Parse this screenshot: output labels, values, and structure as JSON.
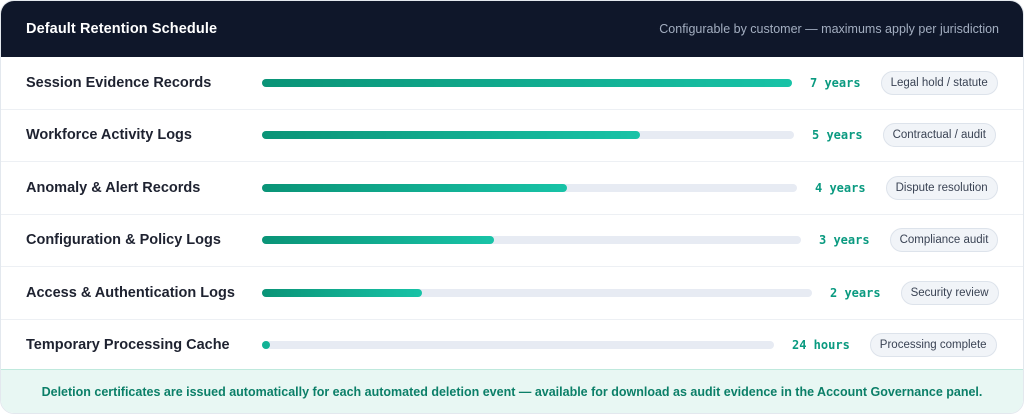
{
  "header": {
    "title": "Default Retention Schedule",
    "note": "Configurable by customer — maximums apply per jurisdiction"
  },
  "rows": [
    {
      "label": "Session Evidence Records",
      "fill_fraction": 1.0,
      "duration": "7 years",
      "reason": "Legal hold / statute"
    },
    {
      "label": "Workforce Activity Logs",
      "fill_fraction": 0.71,
      "duration": "5 years",
      "reason": "Contractual / audit"
    },
    {
      "label": "Anomaly & Alert Records",
      "fill_fraction": 0.57,
      "duration": "4 years",
      "reason": "Dispute resolution"
    },
    {
      "label": "Configuration & Policy Logs",
      "fill_fraction": 0.43,
      "duration": "3 years",
      "reason": "Compliance audit"
    },
    {
      "label": "Access & Authentication Logs",
      "fill_fraction": 0.29,
      "duration": "2 years",
      "reason": "Security review"
    },
    {
      "label": "Temporary Processing Cache",
      "fill_fraction": 0.0,
      "duration": "24 hours",
      "reason": "Processing complete"
    }
  ],
  "footer": {
    "text": "Deletion certificates are issued automatically for each automated deletion event — available for download as audit evidence in the Account Governance panel."
  },
  "colors": {
    "header_bg": "#0f172a",
    "accent": "#12b295",
    "footer_bg": "#e8f7f3"
  }
}
